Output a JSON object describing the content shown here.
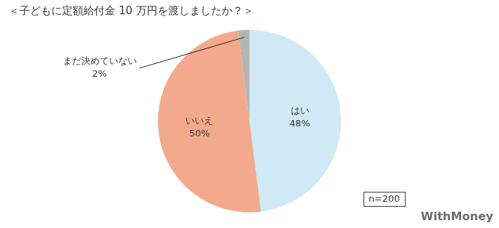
{
  "chart_data": {
    "type": "pie",
    "title": "＜子どもに定額給付金 10 万円を渡しましたか？＞",
    "categories": [
      "はい",
      "いいえ",
      "まだ決めていない"
    ],
    "values": [
      48,
      50,
      2
    ],
    "value_labels": [
      "48%",
      "50%",
      "2%"
    ],
    "colors": [
      "#cfeaf6",
      "#f3a98b",
      "#b5b5b5"
    ],
    "data_labels": true,
    "legend": false,
    "annotations": [
      "n=200"
    ],
    "source": "WithMoney"
  }
}
